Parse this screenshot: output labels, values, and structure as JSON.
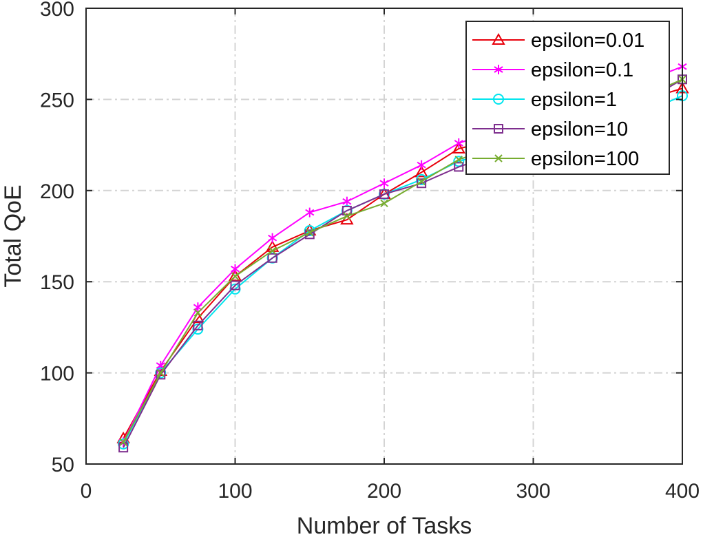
{
  "chart_data": {
    "type": "line",
    "title": "",
    "xlabel": "Number of Tasks",
    "ylabel": "Total QoE",
    "xlim": [
      0,
      400
    ],
    "ylim": [
      50,
      300
    ],
    "xticks": [
      0,
      100,
      200,
      300,
      400
    ],
    "yticks": [
      50,
      100,
      150,
      200,
      250,
      300
    ],
    "grid": true,
    "legend_position": "top-right",
    "x": [
      25,
      50,
      75,
      100,
      125,
      150,
      175,
      200,
      225,
      250,
      275,
      300,
      325,
      350,
      375,
      400
    ],
    "series": [
      {
        "name": "epsilon=0.01",
        "color": "#e8000b",
        "marker": "triangle",
        "values": [
          64,
          101,
          130,
          153,
          169,
          178,
          184,
          198,
          210,
          223,
          228,
          233,
          238,
          244,
          250,
          256
        ]
      },
      {
        "name": "epsilon=0.1",
        "color": "#ff00ff",
        "marker": "asterisk",
        "values": [
          62,
          104,
          136,
          157,
          174,
          188,
          194,
          204,
          214,
          226,
          233,
          240,
          247,
          253,
          260,
          268
        ]
      },
      {
        "name": "epsilon=1",
        "color": "#00e5ee",
        "marker": "circle",
        "values": [
          61,
          100,
          124,
          146,
          163,
          178,
          189,
          198,
          206,
          216,
          222,
          228,
          233,
          238,
          243,
          252
        ]
      },
      {
        "name": "epsilon=10",
        "color": "#7e2f8e",
        "marker": "square",
        "values": [
          59,
          99,
          126,
          148,
          163,
          176,
          189,
          198,
          204,
          213,
          220,
          227,
          234,
          241,
          249,
          261
        ]
      },
      {
        "name": "epsilon=100",
        "color": "#77ac30",
        "marker": "x",
        "values": [
          62,
          100,
          133,
          153,
          167,
          177,
          186,
          193,
          205,
          217,
          224,
          231,
          238,
          245,
          252,
          261
        ]
      }
    ]
  }
}
